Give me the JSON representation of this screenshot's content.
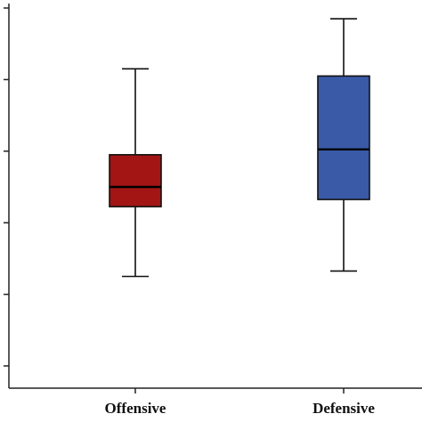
{
  "chart_data": {
    "type": "box",
    "title": "",
    "xlabel": "",
    "ylabel": "",
    "categories": [
      "Offensive",
      "Defensive"
    ],
    "colors": [
      "#a31515",
      "#3a5aa8"
    ],
    "ylim": [
      0,
      100
    ],
    "boxes": [
      {
        "category": "Offensive",
        "min": 25.0,
        "q1": 44.5,
        "median": 50.0,
        "q3": 59.0,
        "max": 83.0
      },
      {
        "category": "Defensive",
        "min": 26.5,
        "q1": 46.5,
        "median": 60.5,
        "q3": 81.0,
        "max": 97.0
      }
    ],
    "grid": false,
    "legend": "none"
  }
}
